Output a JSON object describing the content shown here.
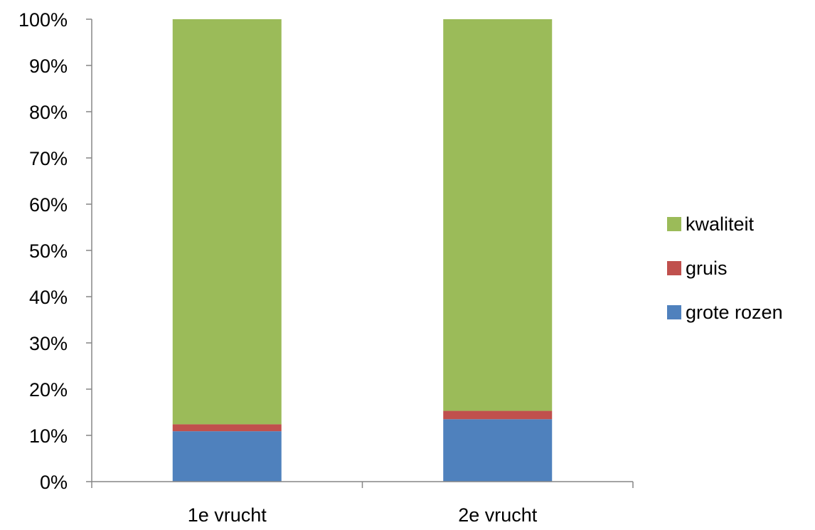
{
  "chart_data": {
    "type": "bar",
    "stacked": true,
    "categories": [
      "1e vrucht",
      "2e vrucht"
    ],
    "series": [
      {
        "name": "grote rozen",
        "values": [
          10.9,
          13.5
        ],
        "color": "#4f81bd"
      },
      {
        "name": "gruis",
        "values": [
          1.5,
          1.8
        ],
        "color": "#c0504d"
      },
      {
        "name": "kwaliteit",
        "values": [
          87.6,
          84.7
        ],
        "color": "#9bbb59"
      }
    ],
    "ylim": [
      0,
      100
    ],
    "yticks": [
      "0%",
      "10%",
      "20%",
      "30%",
      "40%",
      "50%",
      "60%",
      "70%",
      "80%",
      "90%",
      "100%"
    ],
    "grid": false,
    "legend_position": "right",
    "legend_order": [
      "kwaliteit",
      "gruis",
      "grote rozen"
    ],
    "title": "",
    "xlabel": "",
    "ylabel": ""
  }
}
